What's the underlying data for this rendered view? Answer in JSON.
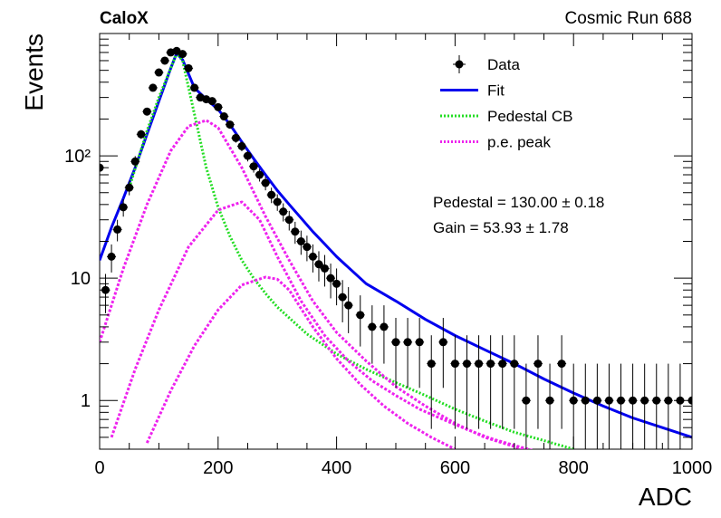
{
  "header": {
    "experiment": "CaloX",
    "run_label": "Cosmic Run 688"
  },
  "fit_results": {
    "pedestal": "Pedestal = 130.00 ± 0.18",
    "gain": "Gain = 53.93 ± 1.78"
  },
  "legend": {
    "placement": "top-right",
    "entries": [
      {
        "key": "data",
        "label": "Data",
        "style": "marker"
      },
      {
        "key": "fit",
        "label": "Fit",
        "style": "line"
      },
      {
        "key": "pedestal",
        "label": "Pedestal CB",
        "style": "dotted-line"
      },
      {
        "key": "pe",
        "label": "p.e. peak",
        "style": "dotted-line"
      }
    ]
  },
  "colors": {
    "data": "#000000",
    "fit": "#0000ee",
    "pedestal": "#22dd22",
    "pe": "#ee22ee"
  },
  "chart_data": {
    "type": "scatter",
    "xlabel": "ADC",
    "ylabel": "Events",
    "xlim": [
      0,
      1000
    ],
    "ylim": [
      0.4,
      1000
    ],
    "yscale": "log",
    "grid": false,
    "x_ticks": [
      {
        "value": 0,
        "label": "0"
      },
      {
        "value": 200,
        "label": "200"
      },
      {
        "value": 400,
        "label": "400"
      },
      {
        "value": 600,
        "label": "600"
      },
      {
        "value": 800,
        "label": "800"
      },
      {
        "value": 1000,
        "label": "1000"
      }
    ],
    "y_ticks": [
      {
        "value": 1,
        "label": "1"
      },
      {
        "value": 10,
        "label": "10"
      },
      {
        "value": 100,
        "label": "10²"
      }
    ],
    "series": [
      {
        "name": "Data",
        "kind": "points",
        "x": [
          0,
          10,
          20,
          30,
          40,
          50,
          60,
          70,
          80,
          90,
          100,
          110,
          120,
          130,
          140,
          150,
          160,
          170,
          180,
          190,
          200,
          210,
          220,
          230,
          240,
          250,
          260,
          270,
          280,
          290,
          300,
          310,
          320,
          330,
          340,
          350,
          360,
          370,
          380,
          390,
          400,
          410,
          420,
          440,
          460,
          480,
          500,
          520,
          540,
          560,
          580,
          600,
          620,
          640,
          660,
          680,
          700,
          720,
          740,
          760,
          780,
          800,
          820,
          840,
          860,
          880,
          900,
          920,
          940,
          960,
          980,
          1000
        ],
        "y": [
          80,
          8,
          15,
          25,
          38,
          55,
          90,
          150,
          230,
          360,
          480,
          600,
          700,
          720,
          680,
          520,
          360,
          300,
          290,
          280,
          250,
          210,
          180,
          140,
          120,
          100,
          82,
          70,
          60,
          48,
          42,
          35,
          30,
          24,
          20,
          18,
          15,
          13,
          12,
          10,
          9,
          7,
          6,
          5,
          4,
          4,
          3,
          3,
          3,
          2,
          3,
          2,
          2,
          2,
          2,
          2,
          2,
          1,
          2,
          1,
          2,
          1,
          1,
          1,
          1,
          1,
          1,
          1,
          1,
          1,
          1,
          1
        ]
      },
      {
        "name": "Fit",
        "kind": "line",
        "x": [
          0,
          20,
          40,
          60,
          80,
          100,
          120,
          130,
          140,
          160,
          180,
          200,
          220,
          240,
          260,
          280,
          300,
          320,
          340,
          360,
          380,
          400,
          450,
          500,
          550,
          600,
          650,
          700,
          750,
          800,
          850,
          900,
          950,
          1000
        ],
        "y": [
          14,
          26,
          45,
          80,
          150,
          280,
          520,
          690,
          610,
          360,
          290,
          240,
          180,
          130,
          95,
          70,
          52,
          40,
          31,
          24,
          19,
          15,
          9,
          6.5,
          4.6,
          3.4,
          2.6,
          2,
          1.5,
          1.15,
          0.9,
          0.72,
          0.6,
          0.5
        ]
      },
      {
        "name": "Pedestal CB",
        "kind": "line",
        "x": [
          50,
          80,
          100,
          120,
          130,
          140,
          160,
          180,
          200,
          220,
          240,
          260,
          280,
          300,
          350,
          400,
          450,
          500,
          550,
          600,
          650,
          700,
          750,
          800
        ],
        "y": [
          55,
          160,
          300,
          520,
          690,
          600,
          220,
          80,
          38,
          22,
          14,
          10,
          7.5,
          5.8,
          3.5,
          2.4,
          1.8,
          1.4,
          1.1,
          0.85,
          0.68,
          0.55,
          0.47,
          0.4
        ]
      },
      {
        "name": "p.e. peak 1",
        "kind": "line",
        "x": [
          0,
          40,
          80,
          120,
          150,
          180,
          200,
          240,
          280,
          320,
          360,
          400,
          450,
          500,
          550,
          600,
          650,
          700,
          750,
          800
        ],
        "y": [
          3,
          12,
          40,
          110,
          175,
          195,
          170,
          80,
          32,
          14,
          6.5,
          3.6,
          2.1,
          1.3,
          0.9,
          0.65,
          0.5,
          0.42,
          0.36,
          0.3
        ]
      },
      {
        "name": "p.e. peak 2",
        "kind": "line",
        "x": [
          20,
          60,
          100,
          150,
          200,
          240,
          270,
          300,
          340,
          380,
          420,
          460,
          500,
          540,
          580,
          620,
          660,
          700,
          740,
          780
        ],
        "y": [
          0.5,
          1.8,
          5.5,
          18,
          36,
          42,
          30,
          15,
          6.5,
          3.4,
          2.1,
          1.45,
          1.1,
          0.85,
          0.7,
          0.58,
          0.49,
          0.43,
          0.38,
          0.33
        ]
      },
      {
        "name": "p.e. peak 3",
        "kind": "line",
        "x": [
          80,
          120,
          160,
          200,
          240,
          280,
          300,
          320,
          360,
          400,
          440,
          480,
          520,
          560,
          600
        ],
        "y": [
          0.45,
          1.2,
          2.8,
          5.5,
          8.8,
          10.2,
          9.8,
          8,
          4,
          2.2,
          1.35,
          0.9,
          0.65,
          0.5,
          0.4
        ]
      }
    ]
  }
}
